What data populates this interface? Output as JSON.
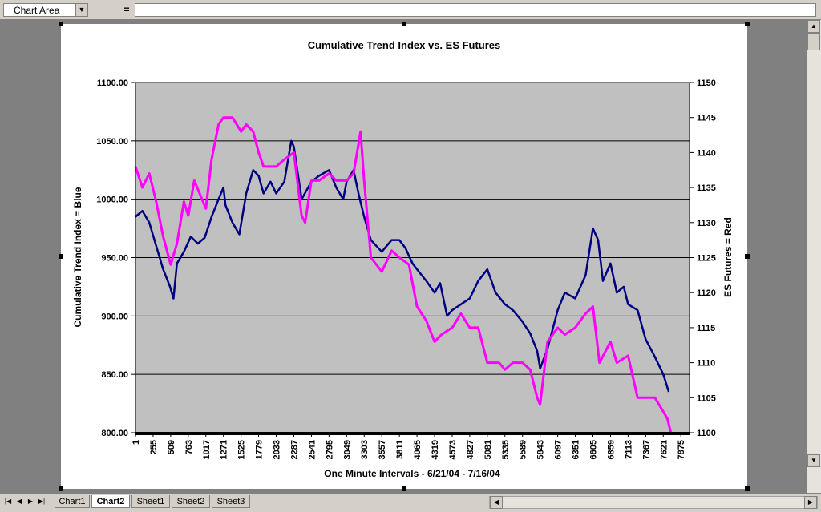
{
  "toolbar": {
    "name_box": "Chart Area",
    "formula_eq": "=",
    "formula_value": ""
  },
  "sheet_tabs": [
    "Chart1",
    "Chart2",
    "Sheet1",
    "Sheet2",
    "Sheet3"
  ],
  "active_tab": "Chart2",
  "chart_data": {
    "type": "line",
    "title": "Cumulative Trend Index vs. ES Futures",
    "xlabel": "One Minute Intervals - 6/21/04 - 7/16/04",
    "ylabel_left": "Cumulative Trend Index = Blue",
    "ylabel_right": "ES Futures = Red",
    "x_ticks": [
      "1",
      "255",
      "509",
      "763",
      "1017",
      "1271",
      "1525",
      "1779",
      "2033",
      "2287",
      "2541",
      "2795",
      "3049",
      "3303",
      "3557",
      "3811",
      "4065",
      "4319",
      "4573",
      "4827",
      "5081",
      "5335",
      "5589",
      "5843",
      "6097",
      "6351",
      "6605",
      "6859",
      "7113",
      "7367",
      "7621",
      "7875"
    ],
    "xlim": [
      1,
      8000
    ],
    "y_left_ticks": [
      "1100.00",
      "1050.00",
      "1000.00",
      "950.00",
      "900.00",
      "850.00",
      "800.00"
    ],
    "ylim_left": [
      800,
      1100
    ],
    "y_right_ticks": [
      "1150",
      "1145",
      "1140",
      "1135",
      "1130",
      "1125",
      "1120",
      "1115",
      "1110",
      "1105",
      "1100"
    ],
    "ylim_right": [
      1100,
      1150
    ],
    "grid": "horizontal",
    "series": [
      {
        "axis": "left",
        "color": "#000080",
        "x": [
          1,
          100,
          200,
          300,
          400,
          500,
          550,
          600,
          700,
          800,
          900,
          1000,
          1100,
          1200,
          1271,
          1300,
          1400,
          1500,
          1600,
          1700,
          1779,
          1850,
          1950,
          2033,
          2150,
          2250,
          2287,
          2400,
          2541,
          2650,
          2795,
          2900,
          3000,
          3049,
          3150,
          3220,
          3303,
          3400,
          3557,
          3700,
          3811,
          3900,
          4000,
          4065,
          4200,
          4319,
          4400,
          4500,
          4573,
          4700,
          4827,
          4950,
          5081,
          5200,
          5335,
          5450,
          5589,
          5700,
          5800,
          5843,
          5950,
          6097,
          6200,
          6351,
          6500,
          6605,
          6680,
          6750,
          6859,
          6950,
          7050,
          7113,
          7250,
          7367,
          7500,
          7621,
          7700
        ],
        "y": [
          985,
          990,
          980,
          960,
          940,
          925,
          915,
          945,
          955,
          968,
          962,
          967,
          985,
          1000,
          1010,
          995,
          980,
          970,
          1005,
          1025,
          1020,
          1005,
          1015,
          1005,
          1015,
          1050,
          1045,
          1000,
          1015,
          1020,
          1025,
          1010,
          1000,
          1015,
          1025,
          1005,
          985,
          965,
          955,
          965,
          965,
          958,
          945,
          940,
          930,
          920,
          928,
          900,
          905,
          910,
          915,
          930,
          940,
          920,
          910,
          905,
          895,
          885,
          870,
          855,
          872,
          905,
          920,
          915,
          935,
          975,
          965,
          930,
          945,
          920,
          925,
          910,
          905,
          880,
          865,
          850,
          835
        ]
      },
      {
        "axis": "right",
        "color": "#ff00ff",
        "x": [
          1,
          100,
          200,
          300,
          400,
          509,
          600,
          700,
          763,
          850,
          1017,
          1100,
          1200,
          1271,
          1400,
          1525,
          1600,
          1700,
          1779,
          1850,
          2033,
          2150,
          2287,
          2400,
          2450,
          2541,
          2650,
          2795,
          2900,
          3049,
          3150,
          3250,
          3303,
          3400,
          3557,
          3700,
          3811,
          3950,
          4065,
          4200,
          4319,
          4420,
          4573,
          4700,
          4827,
          4950,
          5081,
          5250,
          5335,
          5450,
          5589,
          5700,
          5800,
          5843,
          5950,
          6097,
          6200,
          6351,
          6500,
          6605,
          6700,
          6859,
          6950,
          7113,
          7250,
          7367,
          7500,
          7621,
          7680,
          7730
        ],
        "y": [
          1138,
          1135,
          1137,
          1133,
          1128,
          1124,
          1127,
          1133,
          1131,
          1136,
          1132,
          1139,
          1144,
          1145,
          1145,
          1143,
          1144,
          1143,
          1140,
          1138,
          1138,
          1139,
          1140,
          1131,
          1130,
          1136,
          1136,
          1137,
          1136,
          1136,
          1137,
          1143,
          1136,
          1125,
          1123,
          1126,
          1125,
          1124,
          1118,
          1116,
          1113,
          1114,
          1115,
          1117,
          1115,
          1115,
          1110,
          1110,
          1109,
          1110,
          1110,
          1109,
          1105,
          1104,
          1113,
          1115,
          1114,
          1115,
          1117,
          1118,
          1110,
          1113,
          1110,
          1111,
          1105,
          1105,
          1105,
          1103,
          1102,
          1100
        ]
      }
    ]
  }
}
